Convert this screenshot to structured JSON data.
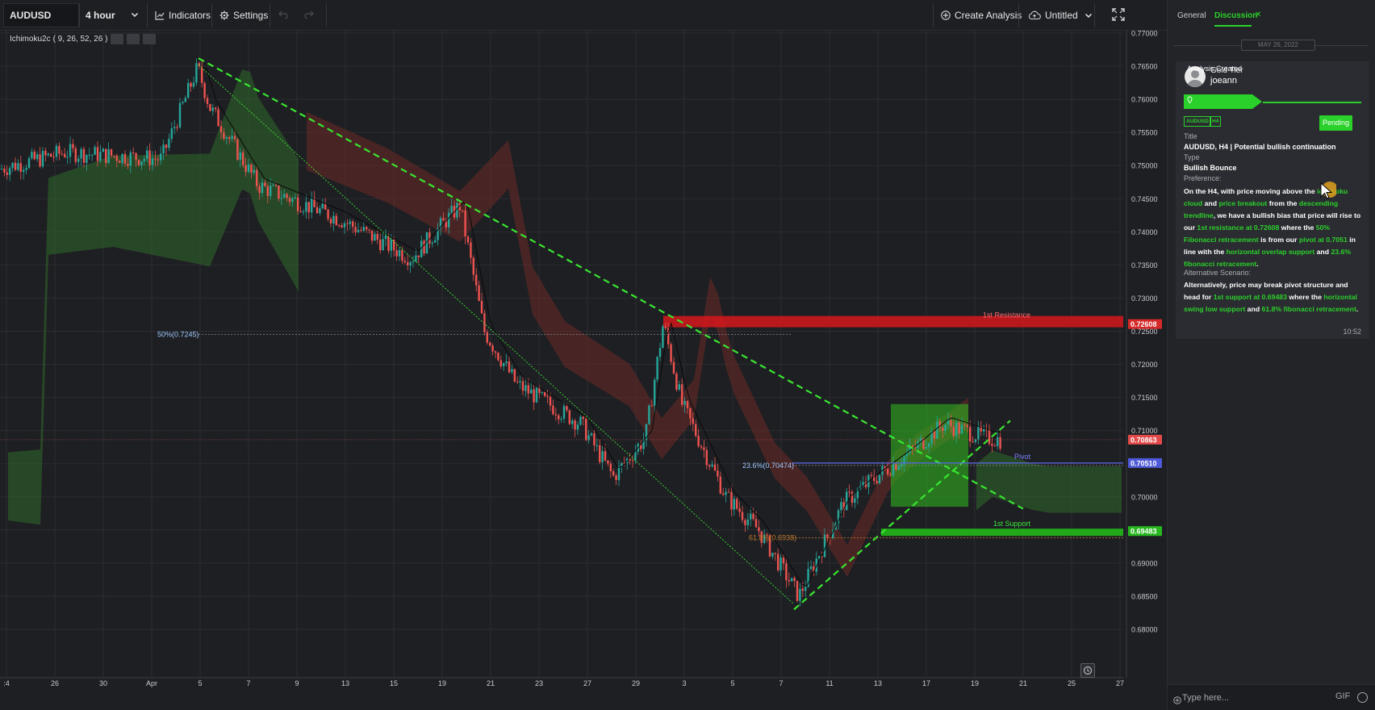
{
  "toolbar": {
    "symbol": "AUDUSD",
    "interval": "4 hour",
    "indicators_label": "Indicators",
    "settings_label": "Settings",
    "create_analysis_label": "Create Analysis",
    "layout_name": "Untitled"
  },
  "legend": {
    "name": "Ichimoku2c",
    "params": "( 9, 26, 52, 26 )"
  },
  "chart_data": {
    "type": "candlestick",
    "symbol": "AUDUSD",
    "interval": "4 hour",
    "y_range": [
      0.68,
      0.77
    ],
    "y_ticks": [
      "0.77000",
      "0.76500",
      "0.76000",
      "0.75500",
      "0.75000",
      "0.74500",
      "0.74000",
      "0.73500",
      "0.73000",
      "0.72500",
      "0.72000",
      "0.71500",
      "0.71000",
      "0.70500",
      "0.70000",
      "0.69500",
      "0.69000",
      "0.68500",
      "0.68000"
    ],
    "x_ticks": [
      ":4",
      "26",
      "30",
      "Apr",
      "5",
      "7",
      "9",
      "13",
      "15",
      "19",
      "21",
      "23",
      "27",
      "29",
      "3",
      "5",
      "7",
      "11",
      "13",
      "17",
      "19",
      "21",
      "25",
      "27"
    ],
    "price_points": [
      [
        0,
        0.7495
      ],
      [
        80,
        0.752
      ],
      [
        200,
        0.751
      ],
      [
        245,
        0.7648
      ],
      [
        260,
        0.7588
      ],
      [
        320,
        0.747
      ],
      [
        420,
        0.742
      ],
      [
        510,
        0.736
      ],
      [
        570,
        0.744
      ],
      [
        600,
        0.725
      ],
      [
        640,
        0.717
      ],
      [
        720,
        0.711
      ],
      [
        760,
        0.703
      ],
      [
        800,
        0.709
      ],
      [
        822,
        0.7262
      ],
      [
        845,
        0.714
      ],
      [
        900,
        0.7
      ],
      [
        940,
        0.695
      ],
      [
        990,
        0.685
      ],
      [
        1045,
        0.699
      ],
      [
        1080,
        0.7025
      ],
      [
        1120,
        0.706
      ],
      [
        1170,
        0.711
      ],
      [
        1220,
        0.709
      ],
      [
        1240,
        0.7086
      ]
    ],
    "annotations": {
      "fib_50": {
        "label": "50%(0.7245)",
        "price": 0.7245
      },
      "fib_236": {
        "label": "23.6%(0.70474)",
        "price": 0.70474
      },
      "fib_618": {
        "label": "61.8%(0.6938)",
        "price": 0.6938
      },
      "resistance": {
        "label": "1st Resistance",
        "price": 0.72608,
        "price_label": "0.72608"
      },
      "pivot": {
        "label": "Pivot",
        "price": 0.7051,
        "price_label": "0.70510"
      },
      "support": {
        "label": "1st Support",
        "price": 0.69483,
        "price_label": "0.69483"
      },
      "last_price": {
        "price": 0.70863,
        "price_label": "0.70863"
      }
    },
    "colors": {
      "up": "#26a69a",
      "down": "#ef5350",
      "trendline": "#39e630",
      "resistance": "#e0161b",
      "support": "#22c21a",
      "pivot": "#5b67e8",
      "cloud_bull": "#2f6a2a",
      "cloud_bear": "#6b2a26"
    }
  },
  "panel": {
    "tabs": {
      "general": "General",
      "discussion": "Discussion"
    },
    "date": "MAY 26, 2022",
    "post": {
      "tier": "Gold Tier",
      "username": "joeann",
      "status": "Analysis Created",
      "symbol_tag": "AUDUSD",
      "interval_tag": "H4",
      "badge": "Pending",
      "title_label": "Title",
      "title": "AUDUSD, H4 | Potential bullish continuation",
      "type_label": "Type",
      "type": "Bullish Bounce",
      "preference_label": "Preference:",
      "preference": {
        "p1": "On the H4, with price moving above the ",
        "h1": "ichimoku cloud",
        "p2": " and ",
        "h2": "price breakout",
        "p3": " from the ",
        "h3": "descending trendline",
        "p4": ", we have a bullish bias that price will rise to our ",
        "h4": "1st resistance at 0.72608",
        "p5": " where the ",
        "h5": "50% Fibonacci retracement",
        "p6": " is from our ",
        "h6": "pivot at 0.7051",
        "p7": " in line with the ",
        "h7": "horizontal overlap support",
        "p8": " and ",
        "h8": "23.6% fibonacci retracement",
        "p9": "."
      },
      "alternative_label": "Alternative Scenario:",
      "alternative": {
        "p1": "Alternatively, price may break pivot structure and head for ",
        "h1": "1st support at 0.69483",
        "p2": " where the ",
        "h2": "horizontal swing low support",
        "p3": " and ",
        "h3": "61.8% fibonacci retracement",
        "p4": "."
      },
      "time": "10:52"
    },
    "composer": {
      "placeholder": "Type here...",
      "gif_label": "GIF"
    }
  },
  "icons": [
    "chart-line-icon",
    "gear-icon",
    "undo-icon",
    "redo-icon",
    "plus-circle-icon",
    "cloud-upload-icon",
    "chevron-down-icon",
    "fullscreen-icon",
    "eye-icon",
    "settings-icon",
    "trash-icon",
    "alert-icon",
    "location-pin-icon",
    "avatar-icon",
    "emoji-icon",
    "add-icon"
  ]
}
